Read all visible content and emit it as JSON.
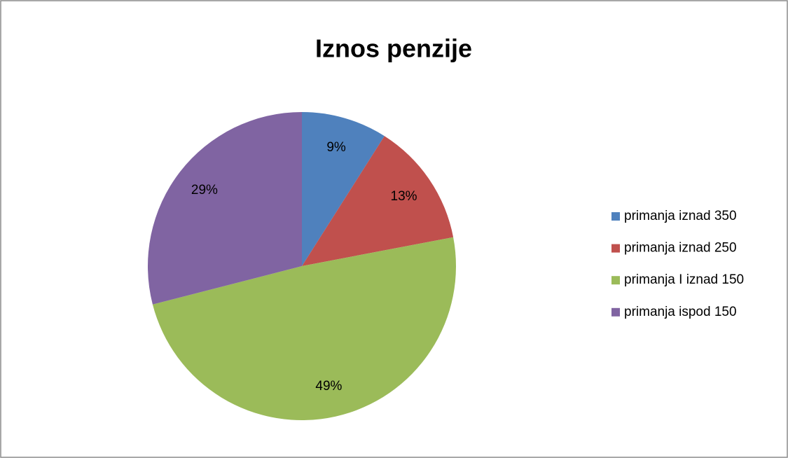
{
  "chart_data": {
    "type": "pie",
    "title": "Iznos penzije",
    "categories": [
      "primanja iznad 350",
      "primanja iznad 250",
      "primanja I iznad 150",
      "primanja ispod 150"
    ],
    "values": [
      9,
      13,
      49,
      29
    ],
    "value_labels": [
      "9%",
      "13%",
      "49%",
      "29%"
    ],
    "colors": [
      "#4f81bd",
      "#c0504d",
      "#9bbb59",
      "#8064a2"
    ],
    "legend": "right"
  }
}
